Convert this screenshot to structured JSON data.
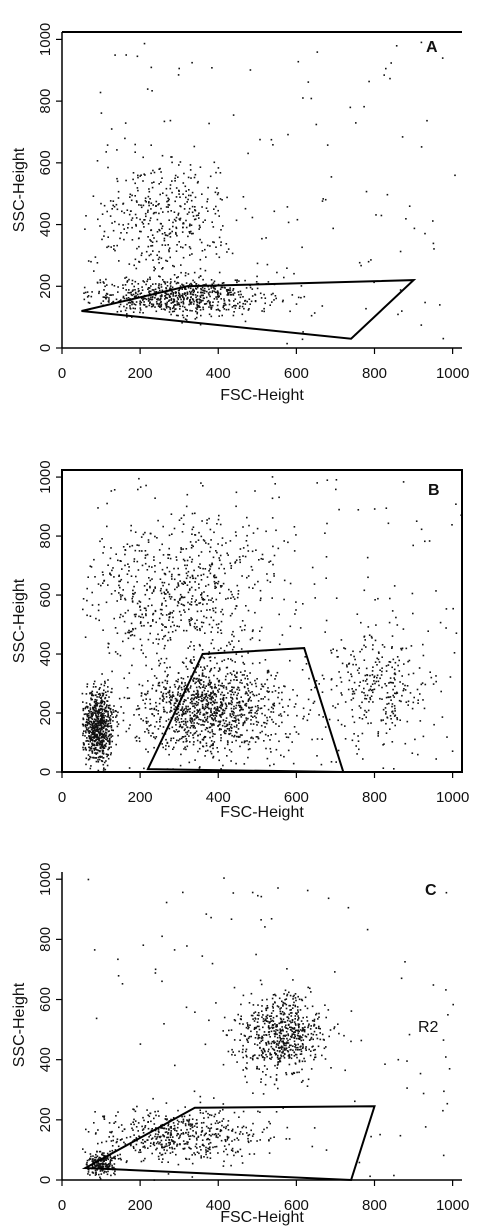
{
  "chart_data": [
    {
      "type": "scatter",
      "panel_label": "A",
      "xlabel": "FSC-Height",
      "ylabel": "SSC-Height",
      "xlim": [
        0,
        1024
      ],
      "ylim": [
        0,
        1024
      ],
      "x_ticks": [
        0,
        200,
        400,
        600,
        800,
        1000
      ],
      "y_ticks": [
        0,
        200,
        400,
        600,
        800,
        1000
      ],
      "gate": [
        [
          50,
          120
        ],
        [
          320,
          200
        ],
        [
          900,
          220
        ],
        [
          740,
          30
        ]
      ],
      "clusters": [
        {
          "center": [
            300,
            170
          ],
          "spread": [
            230,
            60
          ],
          "count": 700
        },
        {
          "center": [
            260,
            420
          ],
          "spread": [
            170,
            200
          ],
          "count": 400
        }
      ],
      "background_points": 120
    },
    {
      "type": "scatter",
      "panel_label": "B",
      "xlabel": "FSC-Height",
      "ylabel": "SSC-Height",
      "xlim": [
        0,
        1024
      ],
      "ylim": [
        0,
        1024
      ],
      "x_ticks": [
        0,
        200,
        400,
        600,
        800,
        1000
      ],
      "y_ticks": [
        0,
        200,
        400,
        600,
        800,
        1000
      ],
      "gate": [
        [
          220,
          10
        ],
        [
          360,
          400
        ],
        [
          620,
          420
        ],
        [
          720,
          0
        ]
      ],
      "clusters": [
        {
          "center": [
            90,
            150
          ],
          "spread": [
            40,
            130
          ],
          "count": 700
        },
        {
          "center": [
            380,
            220
          ],
          "spread": [
            200,
            160
          ],
          "count": 1100
        },
        {
          "center": [
            300,
            620
          ],
          "spread": [
            260,
            260
          ],
          "count": 700
        },
        {
          "center": [
            800,
            300
          ],
          "spread": [
            150,
            200
          ],
          "count": 300
        }
      ],
      "background_points": 150
    },
    {
      "type": "scatter",
      "panel_label": "C",
      "region_label": "R2",
      "xlabel": "FSC-Height",
      "ylabel": "SSC-Height",
      "xlim": [
        0,
        1024
      ],
      "ylim": [
        0,
        1024
      ],
      "x_ticks": [
        0,
        200,
        400,
        600,
        800,
        1000
      ],
      "y_ticks": [
        0,
        200,
        400,
        600,
        800,
        1000
      ],
      "gate": [
        [
          60,
          40
        ],
        [
          340,
          240
        ],
        [
          800,
          245
        ],
        [
          740,
          0
        ]
      ],
      "clusters": [
        {
          "center": [
            560,
            480
          ],
          "spread": [
            110,
            140
          ],
          "count": 650
        },
        {
          "center": [
            300,
            150
          ],
          "spread": [
            200,
            90
          ],
          "count": 500
        },
        {
          "center": [
            100,
            60
          ],
          "spread": [
            40,
            40
          ],
          "count": 200
        }
      ],
      "background_points": 110
    }
  ]
}
